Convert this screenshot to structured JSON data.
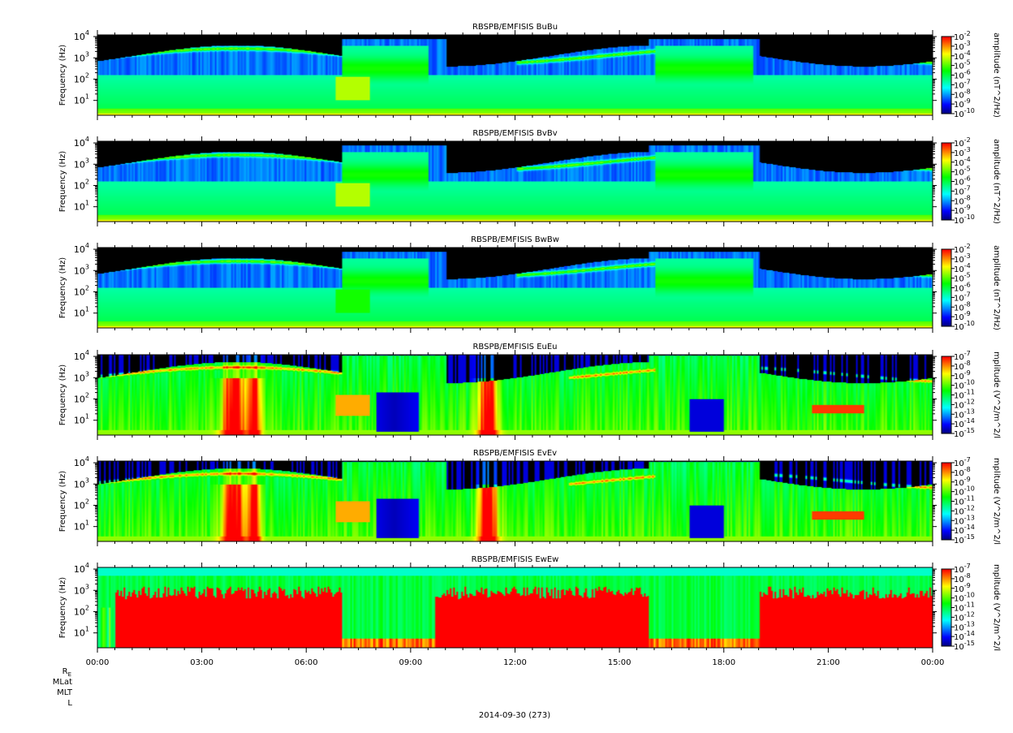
{
  "chart_data": [
    {
      "type": "heatmap",
      "title": "RBSPB/EMFISIS  BuBu",
      "ylabel": "Frequency (Hz)",
      "yscale": "log",
      "ylim": [
        2,
        12000
      ],
      "y_ticks": [
        {
          "base": "10",
          "exp": "4"
        },
        {
          "base": "10",
          "exp": "3"
        },
        {
          "base": "10",
          "exp": "2"
        },
        {
          "base": "10",
          "exp": "1"
        }
      ],
      "colorbar": {
        "label": "amplitude (nT^2/Hz)",
        "scale": "log",
        "range": [
          -10,
          -2
        ],
        "ticks": [
          "-2",
          "-3",
          "-4",
          "-5",
          "-6",
          "-7",
          "-8",
          "-9",
          "-10"
        ]
      },
      "background": "spectral",
      "features": {
        "low": 0.75,
        "whistler": 1.0,
        "floor": 0.35
      }
    },
    {
      "type": "heatmap",
      "title": "RBSPB/EMFISIS  BvBv",
      "ylabel": "Frequency (Hz)",
      "yscale": "log",
      "ylim": [
        2,
        12000
      ],
      "y_ticks": [
        {
          "base": "10",
          "exp": "4"
        },
        {
          "base": "10",
          "exp": "3"
        },
        {
          "base": "10",
          "exp": "2"
        },
        {
          "base": "10",
          "exp": "1"
        }
      ],
      "colorbar": {
        "label": "amplitude (nT^2/Hz)",
        "scale": "log",
        "range": [
          -10,
          -2
        ],
        "ticks": [
          "-2",
          "-3",
          "-4",
          "-5",
          "-6",
          "-7",
          "-8",
          "-9",
          "-10"
        ]
      },
      "background": "spectral",
      "features": {
        "low": 0.75,
        "whistler": 1.0,
        "floor": 0.35
      }
    },
    {
      "type": "heatmap",
      "title": "RBSPB/EMFISIS  BwBw",
      "ylabel": "Frequency (Hz)",
      "yscale": "log",
      "ylim": [
        2,
        12000
      ],
      "y_ticks": [
        {
          "base": "10",
          "exp": "4"
        },
        {
          "base": "10",
          "exp": "3"
        },
        {
          "base": "10",
          "exp": "2"
        },
        {
          "base": "10",
          "exp": "1"
        }
      ],
      "colorbar": {
        "label": "amplitude (nT^2/Hz)",
        "scale": "log",
        "range": [
          -10,
          -2
        ],
        "ticks": [
          "-2",
          "-3",
          "-4",
          "-5",
          "-6",
          "-7",
          "-8",
          "-9",
          "-10"
        ]
      },
      "background": "spectral",
      "features": {
        "low": 0.6,
        "whistler": 1.0,
        "floor": 0.35
      }
    },
    {
      "type": "heatmap",
      "title": "RBSPB/EMFISIS  EuEu",
      "ylabel": "Frequency (Hz)",
      "yscale": "log",
      "ylim": [
        2,
        12000
      ],
      "y_ticks": [
        {
          "base": "10",
          "exp": "4"
        },
        {
          "base": "10",
          "exp": "3"
        },
        {
          "base": "10",
          "exp": "2"
        },
        {
          "base": "10",
          "exp": "1"
        }
      ],
      "colorbar": {
        "label": "mplitude (V^2/m^2/l",
        "scale": "log",
        "range": [
          -15,
          -7
        ],
        "ticks": [
          "-7",
          "-8",
          "-9",
          "-10",
          "-11",
          "-12",
          "-13",
          "-14",
          "-15"
        ]
      },
      "background": "electric",
      "features": {
        "low": 0.9,
        "whistler": 1.0,
        "floor": 0.55
      }
    },
    {
      "type": "heatmap",
      "title": "RBSPB/EMFISIS  EvEv",
      "ylabel": "Frequency (Hz)",
      "yscale": "log",
      "ylim": [
        2,
        12000
      ],
      "y_ticks": [
        {
          "base": "10",
          "exp": "4"
        },
        {
          "base": "10",
          "exp": "3"
        },
        {
          "base": "10",
          "exp": "2"
        },
        {
          "base": "10",
          "exp": "1"
        }
      ],
      "colorbar": {
        "label": "mplitude (V^2/m^2/l",
        "scale": "log",
        "range": [
          -15,
          -7
        ],
        "ticks": [
          "-7",
          "-8",
          "-9",
          "-10",
          "-11",
          "-12",
          "-13",
          "-14",
          "-15"
        ]
      },
      "background": "electric",
      "features": {
        "low": 0.9,
        "whistler": 1.0,
        "floor": 0.55
      }
    },
    {
      "type": "heatmap",
      "title": "RBSPB/EMFISIS  EwEw",
      "ylabel": "Frequency (Hz)",
      "yscale": "log",
      "ylim": [
        2,
        12000
      ],
      "y_ticks": [
        {
          "base": "10",
          "exp": "4"
        },
        {
          "base": "10",
          "exp": "3"
        },
        {
          "base": "10",
          "exp": "2"
        },
        {
          "base": "10",
          "exp": "1"
        }
      ],
      "colorbar": {
        "label": "mplitude (V^2/m^2/l",
        "scale": "log",
        "range": [
          -15,
          -7
        ],
        "ticks": [
          "-7",
          "-8",
          "-9",
          "-10",
          "-11",
          "-12",
          "-13",
          "-14",
          "-15"
        ]
      },
      "background": "saturated",
      "features": {
        "low": 1.0,
        "whistler": 0.6,
        "floor": 0.9
      }
    }
  ],
  "time_axis": {
    "labels": [
      "00:00",
      "03:00",
      "06:00",
      "09:00",
      "12:00",
      "15:00",
      "18:00",
      "21:00",
      "00:00"
    ],
    "range_hours": [
      0,
      24
    ],
    "minor_tick_minutes": 30
  },
  "ephemeris_labels": {
    "re": "R",
    "re_sub": "E",
    "mlat": "MLat",
    "mlt": "MLT",
    "l": "L"
  },
  "date_label": "2014-09-30 (273)",
  "colors": {
    "colormap": [
      "#000080",
      "#0000ff",
      "#0080ff",
      "#00ffff",
      "#00ff80",
      "#00ff00",
      "#80ff00",
      "#ffff00",
      "#ff8000",
      "#ff0000"
    ],
    "saturated_bottom": "#ff0000",
    "empty_top": "#000000",
    "axes": "#000000"
  }
}
